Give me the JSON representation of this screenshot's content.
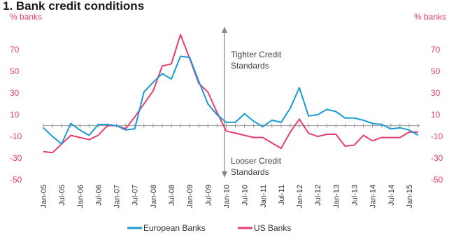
{
  "chart_data": {
    "type": "line",
    "title": "1. Bank credit conditions",
    "left_unit": "% banks",
    "right_unit": "% banks",
    "ylim": [
      -50,
      85
    ],
    "y_ticks": [
      70,
      50,
      30,
      10,
      -10,
      -30,
      -50
    ],
    "y_tick_labels": [
      "70",
      "50",
      "30",
      "10",
      "-10",
      "-30",
      "-50"
    ],
    "x_tick_labels": [
      "Jan-05",
      "Jul-05",
      "Jan-06",
      "Jul-06",
      "Jan-07",
      "Jul-07",
      "Jan-08",
      "Jul-08",
      "Jan-09",
      "Jul-09",
      "Jan-10",
      "Jul-10",
      "Jan-11",
      "Jul-11",
      "Jan-12",
      "Jul-12",
      "Jan-13",
      "Jul-13",
      "Jan-14",
      "Jul-14",
      "Jan-15"
    ],
    "annotation_up": [
      "Tighter Credit",
      "Standards"
    ],
    "annotation_down": [
      "Looser Credit",
      "Standards"
    ],
    "colors": {
      "european": "#1a9ad6",
      "us": "#e83e6c",
      "axis": "#999999"
    },
    "series": [
      {
        "name": "European Banks",
        "values": [
          -2,
          -10,
          -17,
          2,
          -4,
          -9,
          1,
          1,
          0,
          -4,
          -3,
          31,
          40,
          48,
          43,
          64,
          63,
          41,
          20,
          10,
          3,
          3,
          11,
          4,
          -1,
          5,
          3,
          16,
          35,
          9,
          10,
          15,
          13,
          7,
          7,
          5,
          2,
          1,
          -3,
          -2,
          -4,
          -9
        ]
      },
      {
        "name": "US Banks",
        "values": [
          -24,
          -25,
          -17,
          -9,
          -11,
          -13,
          -9,
          0,
          0,
          -3,
          8,
          20,
          32,
          55,
          57,
          84,
          62,
          39,
          31,
          12,
          -5,
          -7,
          -9,
          -11,
          -11,
          -16,
          -21,
          -6,
          6,
          -7,
          -10,
          -8,
          -8,
          -19,
          -18,
          -9,
          -14,
          -11,
          -11,
          -11,
          -6,
          -6
        ]
      }
    ]
  }
}
